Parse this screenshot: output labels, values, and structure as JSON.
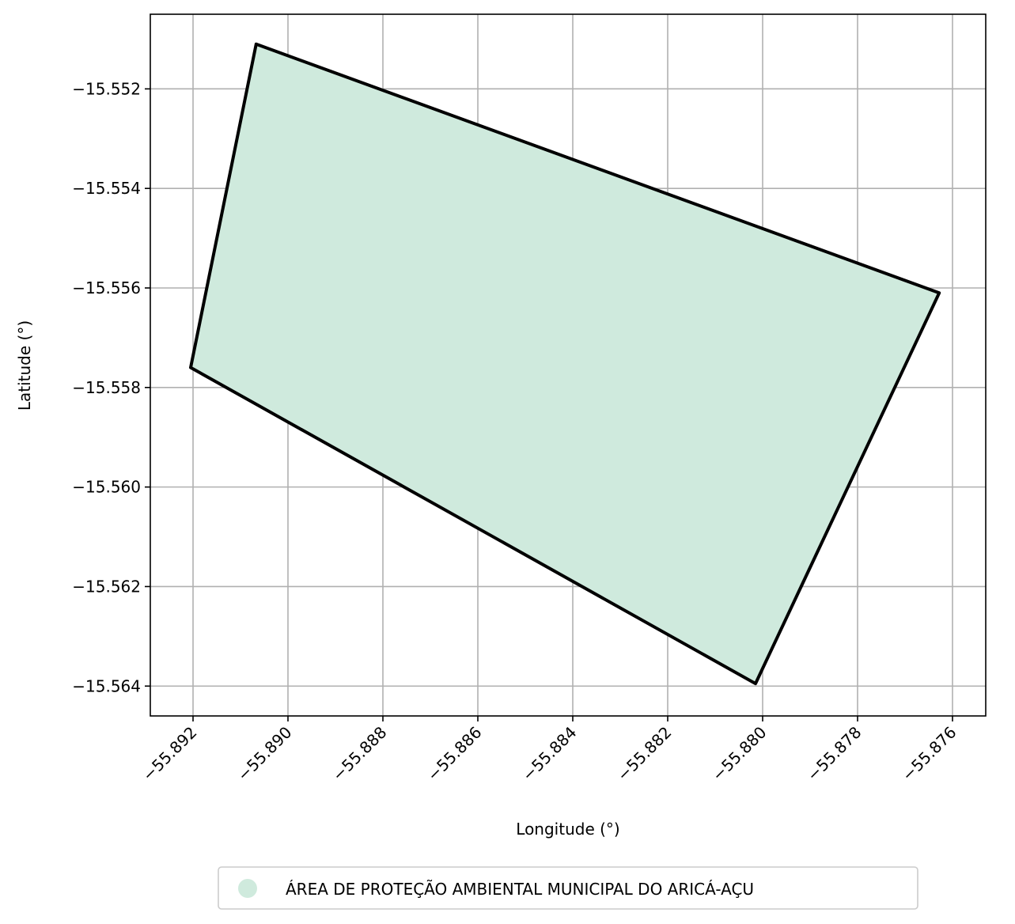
{
  "chart_data": {
    "type": "map",
    "title": "",
    "xlabel": "Longitude (°)",
    "ylabel": "Latitude (°)",
    "xlim": [
      -55.8929,
      -55.8753
    ],
    "ylim": [
      -15.5646,
      -15.5505
    ],
    "grid": true,
    "x_ticks": [
      -55.892,
      -55.89,
      -55.888,
      -55.886,
      -55.884,
      -55.882,
      -55.88,
      -55.878,
      -55.876
    ],
    "x_tick_labels": [
      "−55.892",
      "−55.890",
      "−55.888",
      "−55.886",
      "−55.884",
      "−55.882",
      "−55.880",
      "−55.878",
      "−55.876"
    ],
    "y_ticks": [
      -15.552,
      -15.554,
      -15.556,
      -15.558,
      -15.56,
      -15.562,
      -15.564
    ],
    "y_tick_labels": [
      "−15.552",
      "−15.554",
      "−15.556",
      "−15.558",
      "−15.560",
      "−15.562",
      "−15.564"
    ],
    "polygon": {
      "name": "ÁREA DE PROTEÇÃO AMBIENTAL MUNICIPAL DO ARICÁ-AÇU",
      "fill_color": "#cfeadd",
      "edge_color": "#000000",
      "coordinates": [
        [
          -55.89067,
          -15.5511
        ],
        [
          -55.87628,
          -15.5561
        ],
        [
          -55.88015,
          -15.56395
        ],
        [
          -55.89205,
          -15.5576
        ]
      ]
    },
    "legend": {
      "position": "bottom-center",
      "entries": [
        "ÁREA DE PROTEÇÃO AMBIENTAL MUNICIPAL DO ARICÁ-AÇU"
      ]
    }
  }
}
